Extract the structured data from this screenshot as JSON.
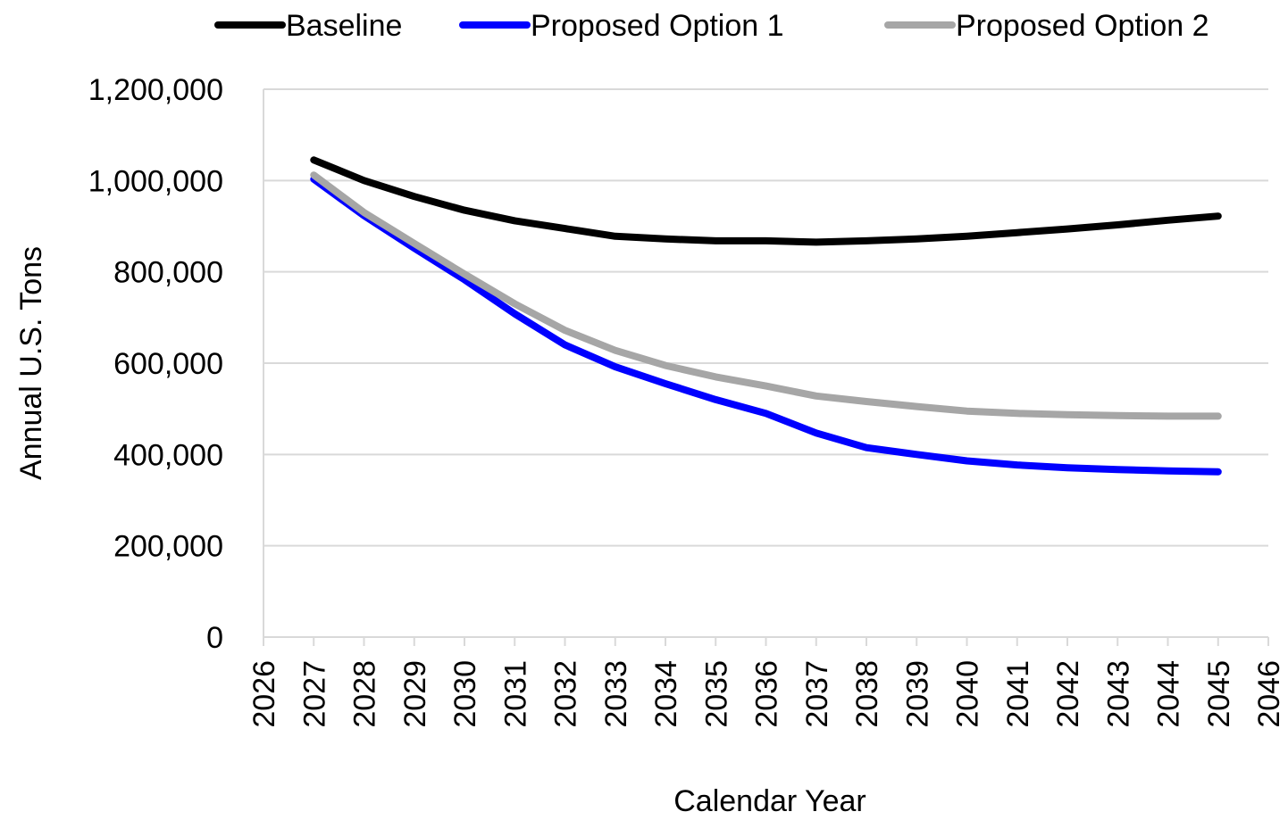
{
  "chart_data": {
    "type": "line",
    "title": "",
    "xlabel": "Calendar Year",
    "ylabel": "Annual U.S. Tons",
    "xlim": [
      2026,
      2046
    ],
    "ylim": [
      0,
      1200000
    ],
    "x_ticks": [
      2026,
      2027,
      2028,
      2029,
      2030,
      2031,
      2032,
      2033,
      2034,
      2035,
      2036,
      2037,
      2038,
      2039,
      2040,
      2041,
      2042,
      2043,
      2044,
      2045,
      2046
    ],
    "y_ticks": [
      0,
      200000,
      400000,
      600000,
      800000,
      1000000,
      1200000
    ],
    "y_tick_labels": [
      "0",
      "200,000",
      "400,000",
      "600,000",
      "800,000",
      "1,000,000",
      "1,200,000"
    ],
    "grid": "horizontal",
    "legend_position": "top",
    "x": [
      2027,
      2028,
      2029,
      2030,
      2031,
      2032,
      2033,
      2034,
      2035,
      2036,
      2037,
      2038,
      2039,
      2040,
      2041,
      2042,
      2043,
      2044,
      2045
    ],
    "series": [
      {
        "name": "Baseline",
        "color": "#000000",
        "values": [
          1045000,
          1000000,
          965000,
          935000,
          912000,
          895000,
          878000,
          872000,
          868000,
          868000,
          865000,
          868000,
          872000,
          878000,
          886000,
          894000,
          903000,
          913000,
          922000
        ]
      },
      {
        "name": "Proposed Option 1",
        "color": "#0000ff",
        "values": [
          1003000,
          923000,
          852000,
          783000,
          708000,
          640000,
          592000,
          555000,
          520000,
          490000,
          447000,
          415000,
          400000,
          386000,
          377000,
          371000,
          367000,
          364000,
          362000
        ]
      },
      {
        "name": "Proposed Option 2",
        "color": "#a6a6a6",
        "values": [
          1012000,
          930000,
          862000,
          795000,
          730000,
          672000,
          628000,
          595000,
          570000,
          550000,
          528000,
          516000,
          505000,
          495000,
          490000,
          487000,
          485000,
          484000,
          484000
        ]
      }
    ]
  }
}
